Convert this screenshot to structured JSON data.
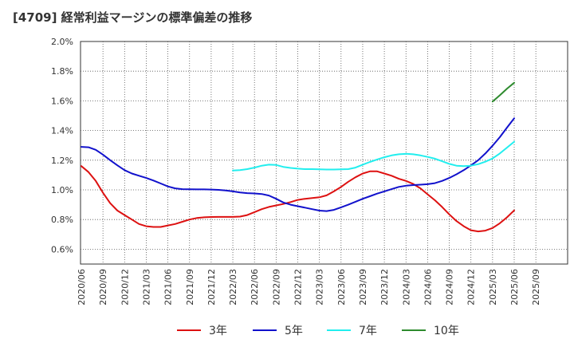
{
  "chart_data": {
    "type": "line",
    "title": "[4709]  経常利益マージンの標準偏差の推移",
    "xlabel": "",
    "ylabel": "",
    "ylim": [
      0.5,
      2.0
    ],
    "ytick_values": [
      0.6,
      0.8,
      1.0,
      1.2,
      1.4,
      1.6,
      1.8,
      2.0
    ],
    "ytick_labels": [
      "0.6%",
      "0.8%",
      "1.0%",
      "1.2%",
      "1.4%",
      "1.6%",
      "1.8%",
      "2.0%"
    ],
    "grid": true,
    "legend_position": "bottom",
    "x_tick_labels": [
      "2020/06",
      "2020/09",
      "2020/12",
      "2021/03",
      "2021/06",
      "2021/09",
      "2021/12",
      "2022/03",
      "2022/06",
      "2022/09",
      "2022/12",
      "2023/03",
      "2023/06",
      "2023/09",
      "2023/12",
      "2024/03",
      "2024/06",
      "2024/09",
      "2024/12",
      "2025/03",
      "2025/06",
      "2025/09"
    ],
    "x_months": [
      "2020/06",
      "2020/07",
      "2020/08",
      "2020/09",
      "2020/10",
      "2020/11",
      "2020/12",
      "2021/01",
      "2021/02",
      "2021/03",
      "2021/04",
      "2021/05",
      "2021/06",
      "2021/07",
      "2021/08",
      "2021/09",
      "2021/10",
      "2021/11",
      "2021/12",
      "2022/01",
      "2022/02",
      "2022/03",
      "2022/04",
      "2022/05",
      "2022/06",
      "2022/07",
      "2022/08",
      "2022/09",
      "2022/10",
      "2022/11",
      "2022/12",
      "2023/01",
      "2023/02",
      "2023/03",
      "2023/04",
      "2023/05",
      "2023/06",
      "2023/07",
      "2023/08",
      "2023/09",
      "2023/10",
      "2023/11",
      "2023/12",
      "2024/01",
      "2024/02",
      "2024/03",
      "2024/04",
      "2024/05",
      "2024/06",
      "2024/07",
      "2024/08",
      "2024/09",
      "2024/10",
      "2024/11",
      "2024/12",
      "2025/01",
      "2025/02",
      "2025/03",
      "2025/04",
      "2025/05",
      "2025/06"
    ],
    "series": [
      {
        "name": "3年",
        "color": "#dd1111",
        "values": [
          1.16,
          1.12,
          1.06,
          0.98,
          0.91,
          0.86,
          0.83,
          0.8,
          0.77,
          0.755,
          0.75,
          0.75,
          0.76,
          0.77,
          0.785,
          0.8,
          0.81,
          0.815,
          0.817,
          0.818,
          0.818,
          0.818,
          0.82,
          0.83,
          0.85,
          0.87,
          0.885,
          0.895,
          0.905,
          0.918,
          0.932,
          0.94,
          0.945,
          0.95,
          0.963,
          0.99,
          1.02,
          1.055,
          1.085,
          1.11,
          1.125,
          1.125,
          1.11,
          1.095,
          1.075,
          1.06,
          1.04,
          1.01,
          0.97,
          0.93,
          0.885,
          0.835,
          0.79,
          0.755,
          0.728,
          0.72,
          0.725,
          0.743,
          0.775,
          0.815,
          0.862
        ]
      },
      {
        "name": "5年",
        "color": "#1111cc",
        "values": [
          1.29,
          1.287,
          1.27,
          1.237,
          1.2,
          1.165,
          1.133,
          1.11,
          1.095,
          1.08,
          1.063,
          1.043,
          1.023,
          1.01,
          1.005,
          1.004,
          1.003,
          1.003,
          1.002,
          1.0,
          0.996,
          0.99,
          0.983,
          0.978,
          0.976,
          0.972,
          0.962,
          0.94,
          0.915,
          0.9,
          0.89,
          0.88,
          0.87,
          0.86,
          0.857,
          0.865,
          0.882,
          0.9,
          0.92,
          0.94,
          0.957,
          0.975,
          0.99,
          1.005,
          1.02,
          1.028,
          1.032,
          1.035,
          1.038,
          1.045,
          1.06,
          1.08,
          1.105,
          1.133,
          1.165,
          1.2,
          1.245,
          1.298,
          1.355,
          1.42,
          1.482
        ]
      },
      {
        "name": "7年",
        "color": "#22eeee",
        "values": [
          null,
          null,
          null,
          null,
          null,
          null,
          null,
          null,
          null,
          null,
          null,
          null,
          null,
          null,
          null,
          null,
          null,
          null,
          null,
          null,
          null,
          1.13,
          1.133,
          1.14,
          1.15,
          1.163,
          1.17,
          1.168,
          1.155,
          1.148,
          1.143,
          1.14,
          1.14,
          1.138,
          1.137,
          1.137,
          1.138,
          1.14,
          1.15,
          1.17,
          1.188,
          1.205,
          1.22,
          1.232,
          1.24,
          1.243,
          1.24,
          1.232,
          1.222,
          1.21,
          1.193,
          1.175,
          1.163,
          1.16,
          1.163,
          1.173,
          1.19,
          1.212,
          1.245,
          1.285,
          1.325
        ]
      },
      {
        "name": "10年",
        "color": "#2e8b2e",
        "values": [
          null,
          null,
          null,
          null,
          null,
          null,
          null,
          null,
          null,
          null,
          null,
          null,
          null,
          null,
          null,
          null,
          null,
          null,
          null,
          null,
          null,
          null,
          null,
          null,
          null,
          null,
          null,
          null,
          null,
          null,
          null,
          null,
          null,
          null,
          null,
          null,
          null,
          null,
          null,
          null,
          null,
          null,
          null,
          null,
          null,
          null,
          null,
          null,
          null,
          null,
          null,
          null,
          null,
          null,
          null,
          null,
          null,
          1.595,
          1.637,
          1.682,
          1.722
        ]
      }
    ]
  }
}
